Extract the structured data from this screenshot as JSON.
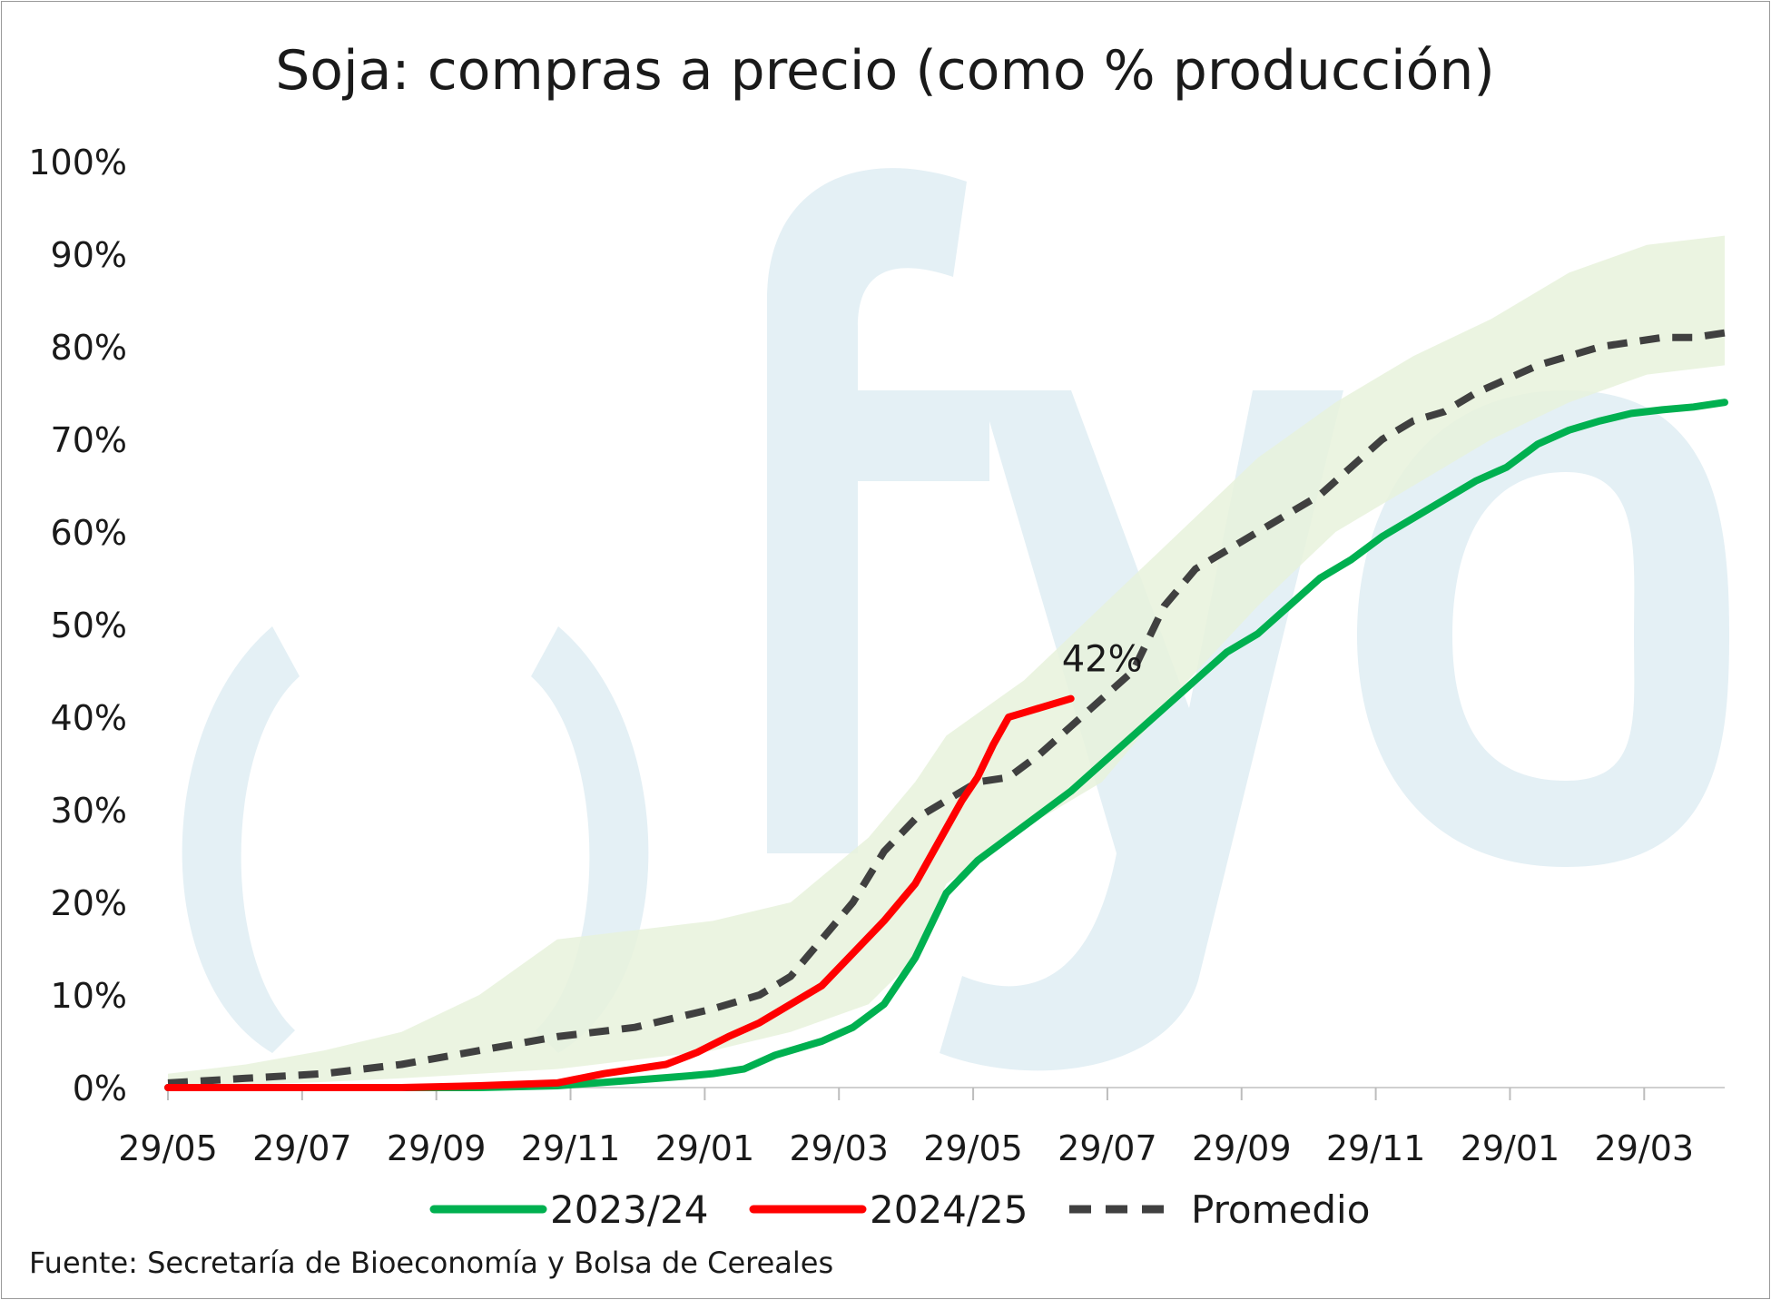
{
  "chart_data": {
    "type": "line",
    "title": "Soja: compras a precio (como % producción)",
    "source": "Fuente: Secretaría de Bioeconomía y Bolsa de Cereales",
    "xlabel": "",
    "ylabel": "",
    "ylim": [
      0,
      100
    ],
    "y_ticks": [
      "0%",
      "10%",
      "20%",
      "30%",
      "40%",
      "50%",
      "60%",
      "70%",
      "80%",
      "90%",
      "100%"
    ],
    "x_tick_labels": [
      "29/05",
      "29/07",
      "29/09",
      "29/11",
      "29/01",
      "29/03",
      "29/05",
      "29/07",
      "29/09",
      "29/11",
      "29/01",
      "29/03"
    ],
    "x_range_weeks": [
      0,
      100
    ],
    "legend": {
      "placement": "bottom",
      "entries": [
        "2023/24",
        "2024/25",
        "Promedio"
      ]
    },
    "annotation": {
      "text": "42%",
      "x_week": 58,
      "y": 42
    },
    "watermark": "fyo",
    "colors": {
      "s2023": "#00b050",
      "s2024": "#ff0000",
      "promedio": "#404040",
      "band": "#e8f2dc",
      "watermark": "#e4f0f5"
    },
    "band": {
      "name": "rango",
      "x_week": [
        0,
        5,
        10,
        15,
        20,
        25,
        30,
        35,
        40,
        45,
        48,
        50,
        55,
        60,
        65,
        70,
        75,
        80,
        85,
        90,
        95,
        100
      ],
      "low": [
        0,
        0.3,
        0.6,
        1,
        1.5,
        2,
        3,
        4,
        6,
        9,
        14,
        22,
        28,
        33,
        43,
        52,
        60,
        65,
        70,
        74,
        77,
        78
      ],
      "high": [
        1.5,
        2.5,
        4,
        6,
        10,
        16,
        17,
        18,
        20,
        27,
        33,
        38,
        44,
        52,
        60,
        68,
        74,
        79,
        83,
        88,
        91,
        92
      ]
    },
    "series": [
      {
        "name": "2023/24",
        "x_week": [
          0,
          5,
          10,
          15,
          20,
          25,
          30,
          33,
          35,
          37,
          39,
          42,
          44,
          46,
          48,
          50,
          52,
          54,
          56,
          58,
          60,
          62,
          64,
          66,
          68,
          70,
          72,
          74,
          76,
          78,
          80,
          82,
          84,
          86,
          88,
          90,
          92,
          94,
          96,
          98,
          100
        ],
        "values": [
          0,
          0,
          0,
          0,
          0,
          0.2,
          0.8,
          1.2,
          1.5,
          2.0,
          3.5,
          5.0,
          6.5,
          9.0,
          14.0,
          21.0,
          24.5,
          27.0,
          29.5,
          32.0,
          35.0,
          38.0,
          41.0,
          44.0,
          47.0,
          49.0,
          52.0,
          55.0,
          57.0,
          59.5,
          61.5,
          63.5,
          65.5,
          67.0,
          69.5,
          71.0,
          72.0,
          72.8,
          73.2,
          73.5,
          74.0
        ]
      },
      {
        "name": "2024/25",
        "x_week": [
          0,
          5,
          10,
          15,
          20,
          25,
          28,
          30,
          32,
          34,
          36,
          38,
          40,
          42,
          44,
          46,
          48,
          50,
          51,
          52,
          53,
          54,
          55,
          56,
          57,
          58
        ],
        "values": [
          0,
          0,
          0,
          0,
          0.2,
          0.5,
          1.5,
          2.0,
          2.5,
          3.8,
          5.5,
          7.0,
          9.0,
          11.0,
          14.5,
          18.0,
          22.0,
          28.0,
          31.0,
          33.5,
          37.0,
          40.0,
          40.5,
          41.0,
          41.5,
          42.0
        ]
      },
      {
        "name": "Promedio",
        "x_week": [
          0,
          5,
          10,
          15,
          20,
          25,
          30,
          35,
          38,
          40,
          42,
          44,
          46,
          48,
          50,
          52,
          54,
          56,
          58,
          60,
          62,
          64,
          66,
          68,
          70,
          72,
          74,
          76,
          78,
          80,
          82,
          84,
          86,
          88,
          90,
          92,
          94,
          96,
          98,
          100
        ],
        "values": [
          0.5,
          1,
          1.5,
          2.5,
          4,
          5.5,
          6.5,
          8.5,
          10,
          12,
          16,
          20,
          25.5,
          29,
          31,
          33,
          33.5,
          36,
          39,
          42,
          45,
          52,
          56,
          58,
          60,
          62,
          64,
          67,
          70,
          72,
          73,
          75,
          76.5,
          78,
          79,
          80,
          80.5,
          81,
          81,
          81.5
        ]
      }
    ]
  }
}
